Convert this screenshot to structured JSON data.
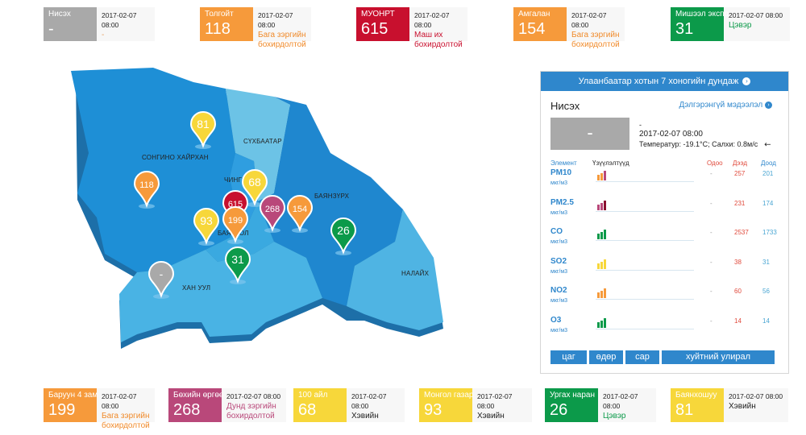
{
  "stations_top": [
    {
      "name": "Нисэх",
      "value": "-",
      "date": "2017-02-07 08:00",
      "status": "-",
      "color": "#a9a9a9",
      "status_color": "#e8a060"
    },
    {
      "name": "Толгойт",
      "value": "118",
      "date": "2017-02-07 08:00",
      "status": "Бага зэргийн бохирдолтой",
      "color": "#f69a3b",
      "status_color": "#f08a2a"
    },
    {
      "name": "МУОНРТ",
      "value": "615",
      "date": "2017-02-07 08:00",
      "status": "Маш их бохирдолтой",
      "color": "#c8102e",
      "status_color": "#c8102e"
    },
    {
      "name": "Амгалан",
      "value": "154",
      "date": "2017-02-07 08:00",
      "status": "Бага зэргийн бохирдолтой",
      "color": "#f69a3b",
      "status_color": "#f08a2a"
    },
    {
      "name": "Мишээл экспо",
      "value": "31",
      "date": "2017-02-07 08:00",
      "status": "Цэвэр",
      "color": "#0c9a4a",
      "status_color": "#0c9a4a"
    }
  ],
  "stations_bottom": [
    {
      "name": "Баруун 4 зам",
      "value": "199",
      "date": "2017-02-07 08:00",
      "status": "Бага зэргийн бохирдолтой",
      "color": "#f69a3b",
      "status_color": "#f08a2a"
    },
    {
      "name": "Бөхийн өргөө",
      "value": "268",
      "date": "2017-02-07 08:00",
      "status": "Дунд зэргийн бохирдолтой",
      "color": "#b9487a",
      "status_color": "#b9487a"
    },
    {
      "name": "100 айл",
      "value": "68",
      "date": "2017-02-07 08:00",
      "status": "Хэвийн",
      "color": "#f7d73a",
      "status_color": "#222222"
    },
    {
      "name": "Монгол газар",
      "value": "93",
      "date": "2017-02-07 08:00",
      "status": "Хэвийн",
      "color": "#f7d73a",
      "status_color": "#222222"
    },
    {
      "name": "Ургах наран",
      "value": "26",
      "date": "2017-02-07 08:00",
      "status": "Цэвэр",
      "color": "#0c9a4a",
      "status_color": "#0c9a4a"
    },
    {
      "name": "Баянхошуу",
      "value": "81",
      "date": "2017-02-07 08:00",
      "status": "Хэвийн",
      "color": "#f7d73a",
      "status_color": "#222222"
    }
  ],
  "map": {
    "districts": [
      "СОНГИНО ХАЙРХАН",
      "СҮХБААТАР",
      "ЧИНГЭ",
      "БАЯНЗҮРХ",
      "БАЯНГОЛ",
      "ХАН УУЛ",
      "НАЛАЙХ"
    ],
    "markers": [
      {
        "value": "81",
        "color": "#f7d73a"
      },
      {
        "value": "118",
        "color": "#f69a3b"
      },
      {
        "value": "68",
        "color": "#f7d73a"
      },
      {
        "value": "615",
        "color": "#c8102e"
      },
      {
        "value": "268",
        "color": "#b9487a"
      },
      {
        "value": "154",
        "color": "#f69a3b"
      },
      {
        "value": "93",
        "color": "#f7d73a"
      },
      {
        "value": "199",
        "color": "#f69a3b"
      },
      {
        "value": "26",
        "color": "#0c9a4a"
      },
      {
        "value": "31",
        "color": "#0c9a4a"
      },
      {
        "value": "-",
        "color": "#a9a9a9"
      }
    ]
  },
  "panel": {
    "header": "Улаанбаатар хотын 7 хоногийн дундаж",
    "header_icon": "chevron-right-circle-icon",
    "station": "Нисэх",
    "more": "Дэлгэрэнгүй мэдээлэл",
    "value": "-",
    "subvalue": "-",
    "date": "2017-02-07 08:00",
    "weather": "Температур: -19.1°C; Салхи: 0.8м/с",
    "wind_icon": "wind-direction-arrow-icon",
    "col_element": "Элемент",
    "col_history": "Үзүүлэлтүүд",
    "col_current": "Одоо",
    "col_high": "Дээд",
    "col_low": "Доод",
    "rows": [
      {
        "element": "PM10",
        "unit": "мкг/м3",
        "current": "-",
        "high": "257",
        "low": "201",
        "colors": [
          "#f69a3b",
          "#f69a3b",
          "#b9487a"
        ]
      },
      {
        "element": "PM2.5",
        "unit": "мкг/м3",
        "current": "-",
        "high": "231",
        "low": "174",
        "colors": [
          "#b9487a",
          "#b9487a",
          "#8a1030"
        ]
      },
      {
        "element": "CO",
        "unit": "мкг/м3",
        "current": "-",
        "high": "2537",
        "low": "1733",
        "colors": [
          "#0c9a4a",
          "#0c9a4a",
          "#0c9a4a"
        ]
      },
      {
        "element": "SO2",
        "unit": "мкг/м3",
        "current": "-",
        "high": "38",
        "low": "31",
        "colors": [
          "#f7d73a",
          "#f7d73a",
          "#f7d73a"
        ]
      },
      {
        "element": "NO2",
        "unit": "мкг/м3",
        "current": "-",
        "high": "60",
        "low": "56",
        "colors": [
          "#f69a3b",
          "#f69a3b",
          "#f69a3b"
        ]
      },
      {
        "element": "O3",
        "unit": "мкг/м3",
        "current": "-",
        "high": "14",
        "low": "14",
        "colors": [
          "#0c9a4a",
          "#0c9a4a",
          "#0c9a4a"
        ]
      }
    ],
    "tabs": [
      "цаг",
      "өдөр",
      "сар",
      "хуйтний улирал"
    ]
  }
}
